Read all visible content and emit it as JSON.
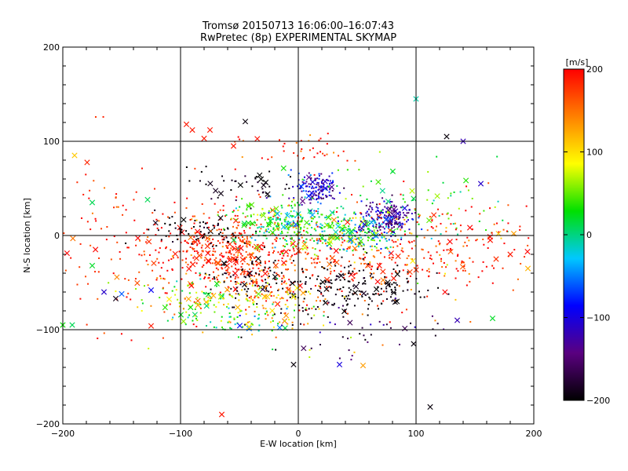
{
  "chart_data": {
    "type": "scatter",
    "title": "Tromsø 20150713 16:06:00–16:07:43",
    "subtitle": "RwPretec (8p) EXPERIMENTAL SKYMAP",
    "xlabel": "E-W location [km]",
    "ylabel": "N-S location [km]",
    "xlim": [
      -200,
      200
    ],
    "ylim": [
      -200,
      200
    ],
    "xticks": [
      -200,
      -100,
      0,
      100,
      200
    ],
    "yticks": [
      -200,
      -100,
      0,
      100,
      200
    ],
    "grid": true,
    "grid_lines_x": [
      -100,
      0,
      100
    ],
    "grid_lines_y": [
      -100,
      0,
      100
    ],
    "colorbar": {
      "label": "[m/s]",
      "min": -200,
      "max": 200,
      "ticks": [
        200,
        100,
        0,
        -100,
        -200
      ],
      "colormap": [
        "#000000",
        "#5a0080",
        "#0000ff",
        "#00c8ff",
        "#00e000",
        "#ffff00",
        "#ff8000",
        "#ff0000"
      ]
    },
    "markers": {
      "small": "dot",
      "large": "x"
    },
    "clusters": [
      {
        "x": -60,
        "y": -20,
        "sx": 30,
        "sy": 22,
        "n": 380,
        "vmean": 185,
        "vsd": 25
      },
      {
        "x": 5,
        "y": -25,
        "sx": 50,
        "sy": 25,
        "n": 260,
        "vmean": 180,
        "vsd": 30
      },
      {
        "x": 80,
        "y": -25,
        "sx": 45,
        "sy": 30,
        "n": 140,
        "vmean": 175,
        "vsd": 35
      },
      {
        "x": -85,
        "y": 5,
        "sx": 25,
        "sy": 8,
        "n": 70,
        "vmean": -195,
        "vsd": 10
      },
      {
        "x": 45,
        "y": -55,
        "sx": 35,
        "sy": 14,
        "n": 200,
        "vmean": -195,
        "vsd": 8
      },
      {
        "x": -40,
        "y": -45,
        "sx": 20,
        "sy": 15,
        "n": 70,
        "vmean": -195,
        "vsd": 8
      },
      {
        "x": -10,
        "y": 10,
        "sx": 20,
        "sy": 12,
        "n": 160,
        "vmean": 10,
        "vsd": 30
      },
      {
        "x": 35,
        "y": 5,
        "sx": 25,
        "sy": 10,
        "n": 150,
        "vmean": 45,
        "vsd": 25
      },
      {
        "x": 15,
        "y": 50,
        "sx": 10,
        "sy": 8,
        "n": 140,
        "vmean": -110,
        "vsd": 35
      },
      {
        "x": 75,
        "y": 18,
        "sx": 10,
        "sy": 10,
        "n": 170,
        "vmean": -130,
        "vsd": 25
      },
      {
        "x": 55,
        "y": 5,
        "sx": 20,
        "sy": 12,
        "n": 80,
        "vmean": -40,
        "vsd": 25
      },
      {
        "x": -45,
        "y": 55,
        "sx": 20,
        "sy": 10,
        "n": 45,
        "vmean": -195,
        "vsd": 10
      },
      {
        "x": -30,
        "y": 20,
        "sx": 25,
        "sy": 10,
        "n": 60,
        "vmean": 45,
        "vsd": 25
      },
      {
        "x": -80,
        "y": -65,
        "sx": 28,
        "sy": 12,
        "n": 90,
        "vmean": 60,
        "vsd": 40
      },
      {
        "x": -25,
        "y": -65,
        "sx": 20,
        "sy": 10,
        "n": 70,
        "vmean": 120,
        "vsd": 30
      },
      {
        "x": 95,
        "y": 30,
        "sx": 45,
        "sy": 20,
        "n": 90,
        "vmean": 30,
        "vsd": 30
      },
      {
        "x": 150,
        "y": -10,
        "sx": 35,
        "sy": 25,
        "n": 110,
        "vmean": 185,
        "vsd": 35
      },
      {
        "x": -150,
        "y": -10,
        "sx": 40,
        "sy": 40,
        "n": 130,
        "vmean": 185,
        "vsd": 25
      },
      {
        "x": -60,
        "y": -85,
        "sx": 30,
        "sy": 10,
        "n": 60,
        "vmean": 20,
        "vsd": 40
      },
      {
        "x": 0,
        "y": 90,
        "sx": 25,
        "sy": 10,
        "n": 40,
        "vmean": 180,
        "vsd": 25
      },
      {
        "x": 40,
        "y": -100,
        "sx": 40,
        "sy": 15,
        "n": 45,
        "vmean": -160,
        "vsd": 40
      },
      {
        "x": -15,
        "y": -90,
        "sx": 25,
        "sy": 12,
        "n": 50,
        "vmean": 80,
        "vsd": 60
      }
    ],
    "crosses_share": 0.1,
    "outliers": [
      {
        "x": 163,
        "y": -5,
        "v": 190
      },
      {
        "x": 168,
        "y": -25,
        "v": 180
      },
      {
        "x": 180,
        "y": -20,
        "v": 190
      },
      {
        "x": 183,
        "y": 2,
        "v": 130
      },
      {
        "x": 170,
        "y": 2,
        "v": 110
      },
      {
        "x": 195,
        "y": -35,
        "v": 120
      },
      {
        "x": 165,
        "y": -88,
        "v": 20
      },
      {
        "x": -192,
        "y": -95,
        "v": 10
      },
      {
        "x": -190,
        "y": 85,
        "v": 110
      },
      {
        "x": -175,
        "y": 35,
        "v": 10
      },
      {
        "x": -175,
        "y": -32,
        "v": 20
      },
      {
        "x": -155,
        "y": -67,
        "v": -190
      },
      {
        "x": -150,
        "y": -62,
        "v": -60
      },
      {
        "x": -95,
        "y": 118,
        "v": 190
      },
      {
        "x": -90,
        "y": 112,
        "v": 190
      },
      {
        "x": -80,
        "y": 103,
        "v": 190
      },
      {
        "x": -75,
        "y": 112,
        "v": 190
      },
      {
        "x": -55,
        "y": 95,
        "v": 190
      },
      {
        "x": -65,
        "y": -190,
        "v": 190
      },
      {
        "x": -125,
        "y": -96,
        "v": 190
      },
      {
        "x": -45,
        "y": 121,
        "v": -195
      },
      {
        "x": 126,
        "y": 105,
        "v": -195
      },
      {
        "x": 140,
        "y": 100,
        "v": -120
      },
      {
        "x": 112,
        "y": -182,
        "v": -195
      },
      {
        "x": 100,
        "y": 145,
        "v": -10
      },
      {
        "x": -4,
        "y": -137,
        "v": -195
      },
      {
        "x": 55,
        "y": -138,
        "v": 130
      },
      {
        "x": 35,
        "y": -137,
        "v": -100
      },
      {
        "x": 98,
        "y": -115,
        "v": -195
      },
      {
        "x": 135,
        "y": -90,
        "v": -120
      },
      {
        "x": -128,
        "y": 38,
        "v": 10
      },
      {
        "x": -200,
        "y": -95,
        "v": 30
      },
      {
        "x": -165,
        "y": -60,
        "v": -110
      },
      {
        "x": -125,
        "y": -58,
        "v": -90
      },
      {
        "x": 155,
        "y": 55,
        "v": -110
      }
    ]
  }
}
